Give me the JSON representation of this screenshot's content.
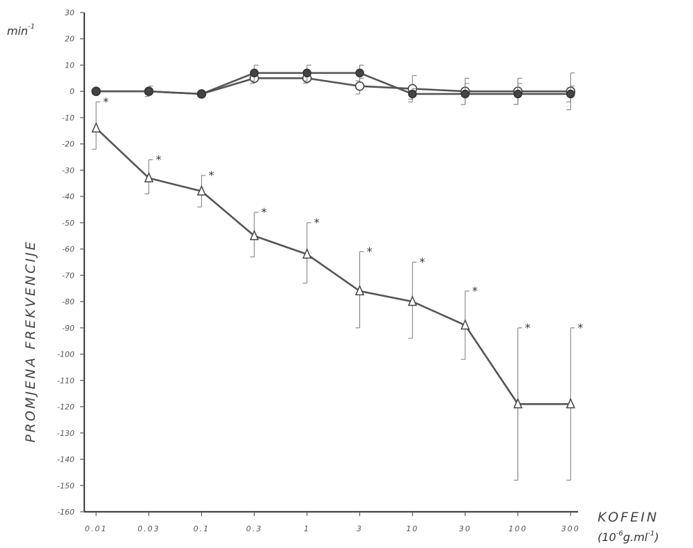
{
  "chart_data": {
    "type": "line",
    "ylabel": "PROMJENA FREKVENCIJE",
    "yunit": "min",
    "yunit_sup": "-1",
    "xlabel": "KOFEIN",
    "xunit_prefix": "(10",
    "xunit_sup1": "-6",
    "xunit_mid": "g.ml",
    "xunit_sup2": "-1",
    "xunit_suffix": ")",
    "categories": [
      "0.01",
      "0.03",
      "0.1",
      "0.3",
      "1",
      "3",
      "10",
      "30",
      "100",
      "300"
    ],
    "ylim": [
      -160,
      30
    ],
    "yticks": [
      30,
      20,
      10,
      0,
      -10,
      -20,
      -30,
      -40,
      -50,
      -60,
      -70,
      -80,
      -90,
      -100,
      -110,
      -120,
      -130,
      -140,
      -150,
      -160
    ],
    "ytick_labels": [
      "30",
      "20",
      "10",
      "0",
      "-10",
      "-20",
      "-30",
      "-40",
      "-50",
      "-60",
      "-70",
      "-80",
      "-90",
      "-100",
      "-110",
      "-120",
      "-130",
      "-140",
      "-150",
      "-160"
    ],
    "significance_marker": "*",
    "series": [
      {
        "marker": "filled-circle",
        "values": [
          0,
          0,
          -1,
          7,
          7,
          7,
          -1,
          -1,
          -1,
          -1
        ],
        "err_upper": [
          1,
          2,
          1,
          3,
          3,
          3,
          2,
          4,
          4,
          3
        ],
        "err_lower": [
          1,
          2,
          1,
          3,
          3,
          3,
          2,
          4,
          4,
          3
        ],
        "significant": [
          false,
          false,
          false,
          false,
          false,
          false,
          false,
          false,
          false,
          false
        ]
      },
      {
        "marker": "open-circle",
        "values": [
          0,
          0,
          -1,
          5,
          5,
          2,
          1,
          0,
          0,
          0
        ],
        "err_upper": [
          1,
          1,
          1,
          2,
          2,
          3,
          5,
          5,
          5,
          7
        ],
        "err_lower": [
          1,
          1,
          1,
          2,
          2,
          3,
          5,
          5,
          5,
          7
        ],
        "significant": [
          false,
          false,
          false,
          false,
          false,
          false,
          false,
          false,
          false,
          false
        ]
      },
      {
        "marker": "open-triangle",
        "values": [
          -14,
          -33,
          -38,
          -55,
          -62,
          -76,
          -80,
          -89,
          -119,
          -119
        ],
        "err_upper": [
          10,
          7,
          6,
          9,
          12,
          15,
          15,
          13,
          29,
          29
        ],
        "err_lower": [
          8,
          6,
          6,
          8,
          11,
          14,
          14,
          13,
          29,
          29
        ],
        "significant": [
          true,
          true,
          true,
          true,
          true,
          true,
          true,
          true,
          true,
          true
        ]
      }
    ]
  }
}
